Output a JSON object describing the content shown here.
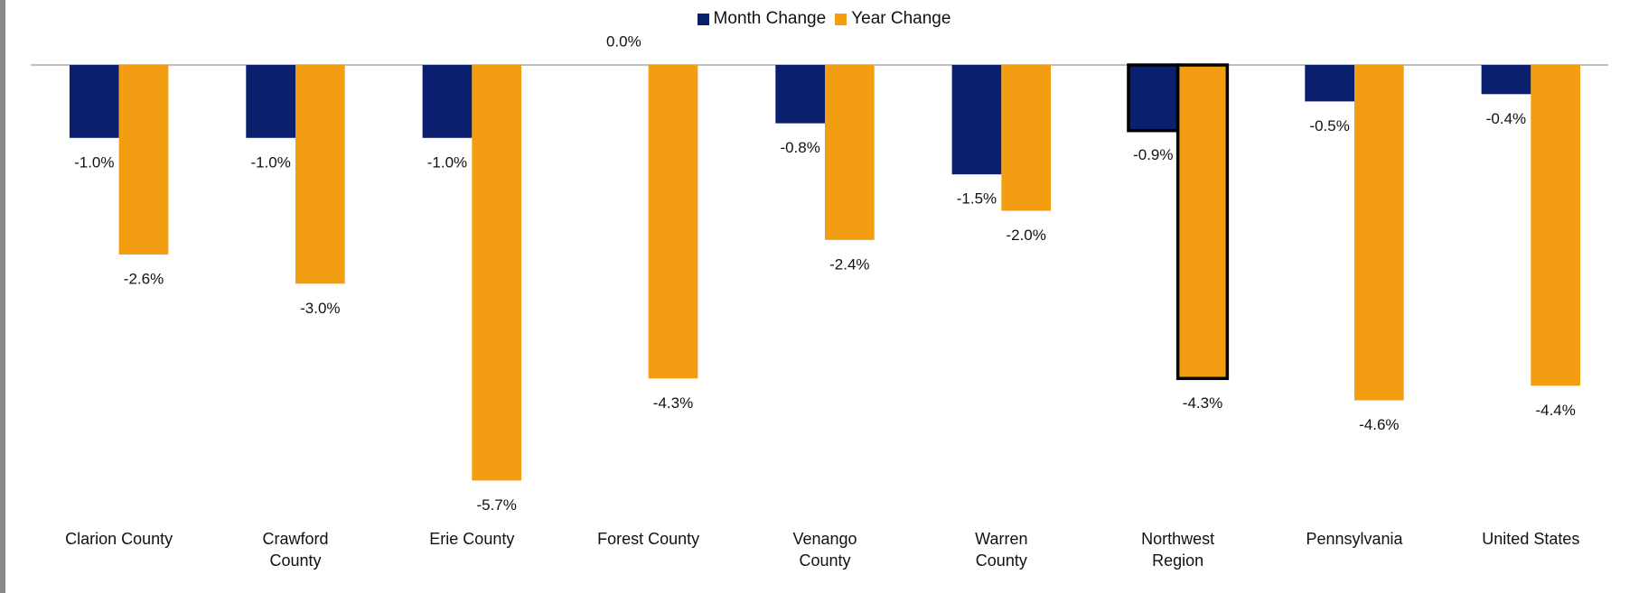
{
  "chart_data": {
    "type": "bar",
    "categories": [
      "Clarion County",
      "Crawford County",
      "Erie County",
      "Forest County",
      "Venango County",
      "Warren County",
      "Northwest Region",
      "Pennsylvania",
      "United States"
    ],
    "series": [
      {
        "name": "Month Change",
        "color": "#0b1f6f",
        "values": [
          -1.0,
          -1.0,
          -1.0,
          0.0,
          -0.8,
          -1.5,
          -0.9,
          -0.5,
          -0.4
        ],
        "value_labels": [
          "-1.0%",
          "-1.0%",
          "-1.0%",
          "0.0%",
          "-0.8%",
          "-1.5%",
          "-0.9%",
          "-0.5%",
          "-0.4%"
        ]
      },
      {
        "name": "Year Change",
        "color": "#f39e12",
        "values": [
          -2.6,
          -3.0,
          -5.7,
          -4.3,
          -2.4,
          -2.0,
          -4.3,
          -4.6,
          -4.4
        ],
        "value_labels": [
          "-2.6%",
          "-3.0%",
          "-5.7%",
          "-4.3%",
          "-2.4%",
          "-2.0%",
          "-4.3%",
          "-4.6%",
          "-4.4%"
        ]
      }
    ],
    "ylim": [
      -6.5,
      0
    ],
    "highlight": "Northwest Region",
    "legend": "top"
  }
}
